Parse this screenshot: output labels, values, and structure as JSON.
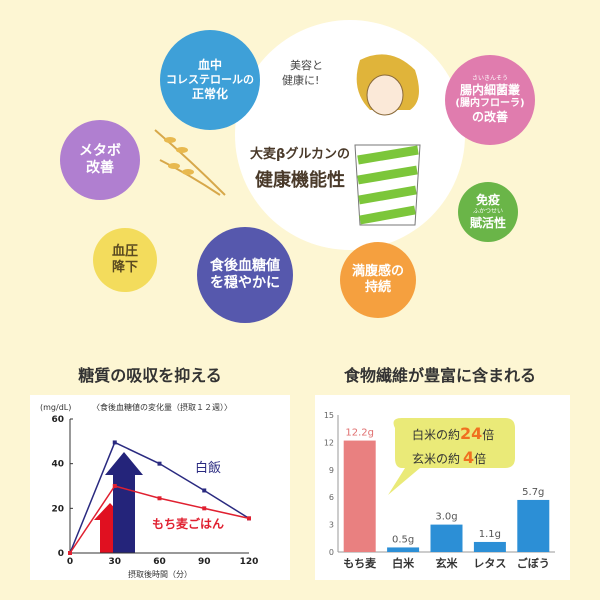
{
  "hero": {
    "handwriting": [
      "美容と",
      "健康に!"
    ],
    "title_line1": "大麦βグルカンの",
    "title_line2": "健康機能性"
  },
  "bubbles": [
    {
      "lines": [
        "血中",
        "コレステロールの",
        "正常化"
      ],
      "color": "#3ea0d8"
    },
    {
      "lines": [
        "メタボ",
        "改善"
      ],
      "color": "#b07fd0"
    },
    {
      "lines": [
        "血圧",
        "降下"
      ],
      "color": "#f3dc5c"
    },
    {
      "lines": [
        "食後血糖値",
        "を穏やかに"
      ],
      "color": "#5658ad"
    },
    {
      "lines": [
        "満腹感の",
        "持続"
      ],
      "color": "#f5a03f"
    },
    {
      "lines": [
        "免疫",
        "賦活性"
      ],
      "ruby": "ふかつせい",
      "color": "#6ab548"
    },
    {
      "lines": [
        "腸内細菌叢",
        "(腸内フローラ)",
        "の改善"
      ],
      "ruby": "さいきんそう",
      "color": "#e07cae"
    }
  ],
  "sections": {
    "left_title": "糖質の吸収を抑える",
    "right_title": "食物繊維が豊富に含まれる"
  },
  "chart_data": [
    {
      "type": "line",
      "title": "〈食後血糖値の変化量（摂取１２週）〉",
      "ylabel": "(mg/dL)",
      "xlabel": "摂取後時間（分）",
      "x": [
        0,
        30,
        60,
        90,
        120
      ],
      "xlim": [
        0,
        120
      ],
      "ylim": [
        0,
        60
      ],
      "yticks": [
        0,
        20,
        40,
        60
      ],
      "series": [
        {
          "name": "白飯",
          "values": [
            0,
            49.5,
            40,
            28,
            15.5
          ],
          "color": "#2a2a80"
        },
        {
          "name": "もち麦ごはん",
          "values": [
            0,
            30,
            24.5,
            20,
            15.5
          ],
          "color": "#e02030"
        }
      ]
    },
    {
      "type": "bar",
      "categories": [
        "もち麦",
        "白米",
        "玄米",
        "レタス",
        "ごぼう"
      ],
      "values": [
        12.2,
        0.5,
        3.0,
        1.1,
        5.7
      ],
      "labels": [
        "12.2g",
        "0.5g",
        "3.0g",
        "1.1g",
        "5.7g"
      ],
      "colors": [
        "#e98080",
        "#2c8fd6",
        "#2c8fd6",
        "#2c8fd6",
        "#2c8fd6"
      ],
      "ylim": [
        0,
        15
      ],
      "yticks": [
        0,
        3,
        6,
        9,
        12,
        15
      ],
      "callout": {
        "line1_pre": "白米の約",
        "line1_num": "24",
        "line1_post": "倍",
        "line2_pre": "玄米の約",
        "line2_num": "4",
        "line2_post": "倍"
      }
    }
  ]
}
